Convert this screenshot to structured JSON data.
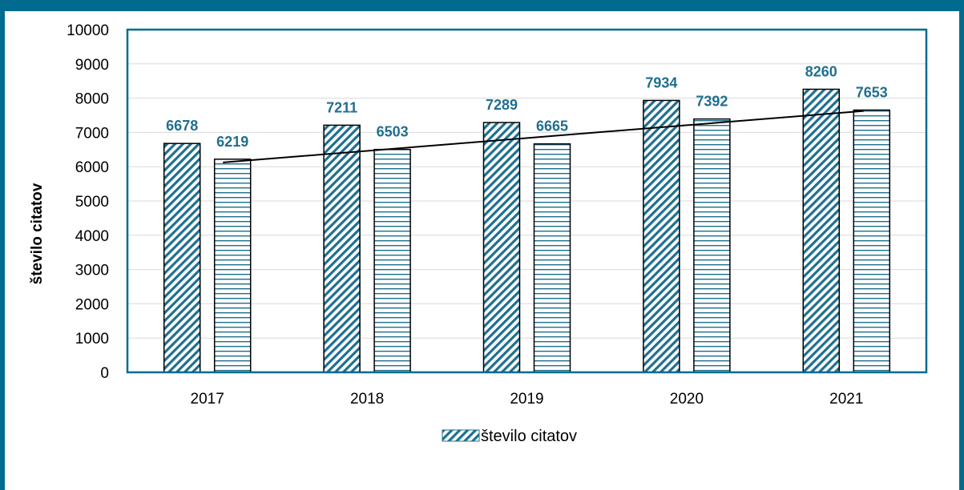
{
  "chart_data": {
    "type": "bar",
    "title": "",
    "xlabel": "",
    "ylabel": "število citatov",
    "categories": [
      "2017",
      "2018",
      "2019",
      "2020",
      "2021"
    ],
    "series": [
      {
        "values": [
          6678,
          7211,
          7289,
          7934,
          8260
        ],
        "pattern": "diagonal-stripes"
      },
      {
        "values": [
          6219,
          6503,
          6665,
          7392,
          7653
        ],
        "pattern": "horizontal-stripes"
      }
    ],
    "trendline": {
      "type": "linear",
      "series_index": 1
    },
    "ylim": [
      0,
      10000
    ],
    "yticks": [
      "0",
      "1000",
      "2000",
      "3000",
      "4000",
      "5000",
      "6000",
      "7000",
      "8000",
      "9000",
      "10000"
    ],
    "grid": true,
    "legend": {
      "position": "bottom",
      "entries": [
        "število citatov"
      ]
    }
  },
  "colors": {
    "accent": "#006b8f",
    "data_label": "#1f6f8f",
    "grid": "#d9d9d9",
    "plot_border": "#006b8f"
  }
}
